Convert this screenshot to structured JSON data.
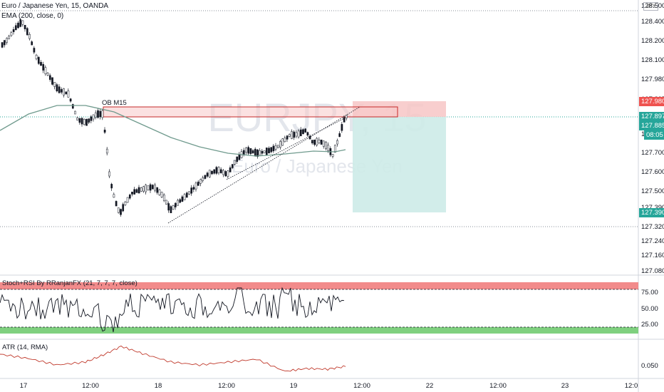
{
  "header": {
    "symbol_title": "Euro / Japanese Yen, 15, OANDA",
    "ema_label": "EMA (200, close, 0)",
    "stoch_label": "Stoch+RSI By RRanjanFX (21, 7, 7, 7, close)",
    "atr_label": "ATR (14, RMA)",
    "currency_badge": "JPY"
  },
  "watermark": {
    "symbol": "EURJPY, 15",
    "name": "Euro / Japanese Yen"
  },
  "annotations": {
    "order_block": "OB M15"
  },
  "price_axis": {
    "ticks": [
      "128.500",
      "128.400",
      "128.200",
      "128.100",
      "127.980",
      "127.897",
      "127.885",
      "127.800",
      "127.700",
      "127.600",
      "127.500",
      "127.390",
      "127.320",
      "127.240",
      "127.160",
      "127.080"
    ],
    "tags": {
      "stop": "127.980",
      "last": "127.897",
      "entry": "127.885",
      "countdown": "08:05",
      "target": "127.390"
    }
  },
  "stoch_axis": {
    "ticks": [
      "75.00",
      "50.00",
      "25.00"
    ]
  },
  "atr_axis": {
    "ticks": [
      "0.050"
    ]
  },
  "time_axis": {
    "ticks": [
      "17",
      "12:00",
      "18",
      "12:00",
      "19",
      "12:00",
      "22",
      "12:00",
      "23",
      "12:0"
    ]
  },
  "colors": {
    "up": "#26a69a",
    "down": "#ef5350",
    "candle_body_up": "#ffffff",
    "candle_body_down": "#131722",
    "ema": "#6f9a8d",
    "stop_zone": "#f7c5c5",
    "target_zone": "#cdebe8",
    "stoch_line": "#131722",
    "stoch_over": "#f28b8b",
    "stoch_under": "#7fd07f",
    "atr_line": "#c0392b"
  },
  "chart_data": {
    "type": "candlestick",
    "series": [
      {
        "name": "Euro / Japanese Yen, 15, OANDA"
      },
      {
        "name": "EMA (200, close, 0)"
      },
      {
        "name": "Stoch+RSI By RRanjanFX (21, 7, 7, 7, close)"
      },
      {
        "name": "ATR (14, RMA)"
      }
    ],
    "ylim": [
      127.05,
      128.52
    ],
    "levels": {
      "stop": 127.98,
      "entry": 127.885,
      "target": 127.39,
      "last": 127.897
    },
    "stoch_levels": [
      75,
      50,
      25
    ],
    "atr_level": 0.05
  }
}
